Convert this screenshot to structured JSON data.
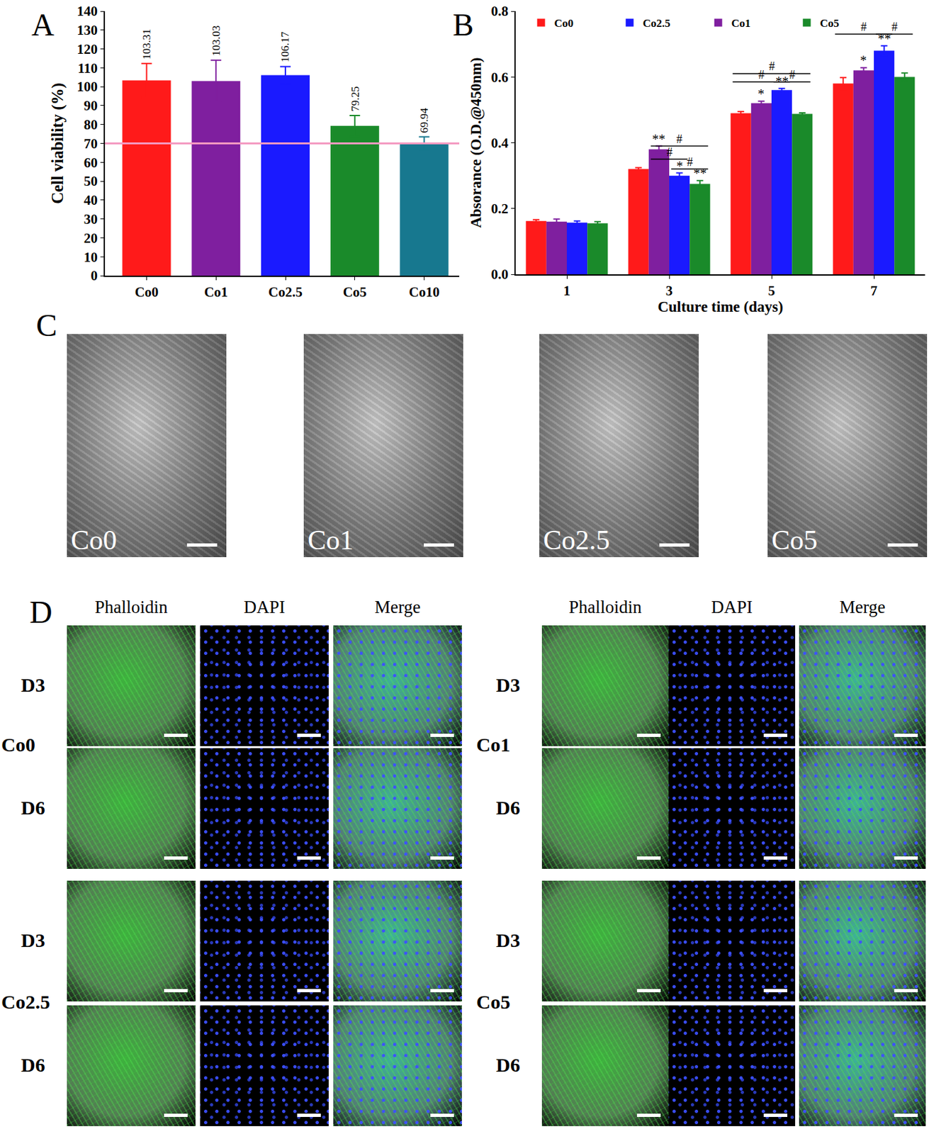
{
  "chart_data": [
    {
      "panel": "A",
      "type": "bar",
      "categories": [
        "Co0",
        "Co1",
        "Co2.5",
        "Co5",
        "Co10"
      ],
      "values": [
        103.31,
        103.03,
        106.17,
        79.25,
        69.94
      ],
      "errors": [
        9,
        11,
        4.5,
        5.5,
        3.5
      ],
      "colors": [
        "#ff1a1a",
        "#7f1f9f",
        "#1a1aff",
        "#1a8a2a",
        "#17788f"
      ],
      "ylabel": "Cell viability (%)",
      "ylim": [
        0,
        140
      ],
      "yticks": [
        0,
        10,
        20,
        30,
        40,
        50,
        60,
        70,
        80,
        90,
        100,
        110,
        120,
        130,
        140
      ],
      "threshold": {
        "value": 70,
        "color": "#f49ac1"
      },
      "data_labels": true
    },
    {
      "panel": "B",
      "type": "bar",
      "categories": [
        "1",
        "3",
        "5",
        "7"
      ],
      "xlabel": "Culture time (days)",
      "ylabel": "Absorance (O.D.@450nm)",
      "ylim": [
        0,
        0.8
      ],
      "yticks": [
        {
          "value": 0,
          "label": "0.0"
        },
        0.2,
        0.4,
        0.6,
        0.8
      ],
      "legend": "top-left",
      "series": [
        {
          "name": "Co0",
          "color": "#ff1a1a",
          "values": [
            0.162,
            0.32,
            0.49,
            0.58
          ],
          "errors": [
            0.004,
            0.004,
            0.005,
            0.018
          ],
          "significance": [
            null,
            null,
            null,
            null
          ]
        },
        {
          "name": "Co1",
          "color": "#7f1f9f",
          "values": [
            0.16,
            0.38,
            0.52,
            0.62
          ],
          "errors": [
            0.008,
            0.01,
            0.006,
            0.008
          ],
          "significance": [
            null,
            "**",
            "*",
            "*"
          ]
        },
        {
          "name": "Co2.5",
          "color": "#1a1aff",
          "values": [
            0.157,
            0.3,
            0.56,
            0.68
          ],
          "errors": [
            0.005,
            0.008,
            0.005,
            0.015
          ],
          "significance": [
            null,
            "*",
            "**",
            "**"
          ]
        },
        {
          "name": "Co5",
          "color": "#1a8a2a",
          "values": [
            0.155,
            0.275,
            0.488,
            0.6
          ],
          "errors": [
            0.005,
            0.01,
            0.003,
            0.012
          ],
          "significance": [
            null,
            "**",
            null,
            null
          ]
        }
      ],
      "comparisons": [
        {
          "category": "3",
          "from": "Co1",
          "to": "Co5",
          "y": 0.39,
          "label": "#"
        },
        {
          "category": "3",
          "from": "Co1",
          "to": "Co2.5",
          "y": 0.35,
          "label": "#"
        },
        {
          "category": "3",
          "from": "Co2.5",
          "to": "Co5",
          "y": 0.32,
          "label": "#"
        },
        {
          "category": "5",
          "from": "Co0",
          "to": "Co5",
          "y": 0.61,
          "label": "#"
        },
        {
          "category": "5",
          "from": "Co0",
          "to": "Co2.5",
          "y": 0.585,
          "label": "#"
        },
        {
          "category": "5",
          "from": "Co2.5",
          "to": "Co5",
          "y": 0.585,
          "label": "#"
        },
        {
          "category": "7",
          "from": "Co0",
          "to": "Co2.5",
          "y": 0.73,
          "label": "#"
        },
        {
          "category": "7",
          "from": "Co2.5",
          "to": "Co5",
          "y": 0.73,
          "label": "#"
        }
      ]
    }
  ],
  "panels": {
    "C": {
      "label": "C",
      "images": [
        "Co0",
        "Co1",
        "Co2.5",
        "Co5"
      ]
    },
    "D": {
      "label": "D",
      "columns": [
        "Phalloidin",
        "DAPI",
        "Merge"
      ],
      "rows": [
        "D3",
        "D6"
      ],
      "groups": [
        "Co0",
        "Co1",
        "Co2.5",
        "Co5"
      ]
    }
  }
}
